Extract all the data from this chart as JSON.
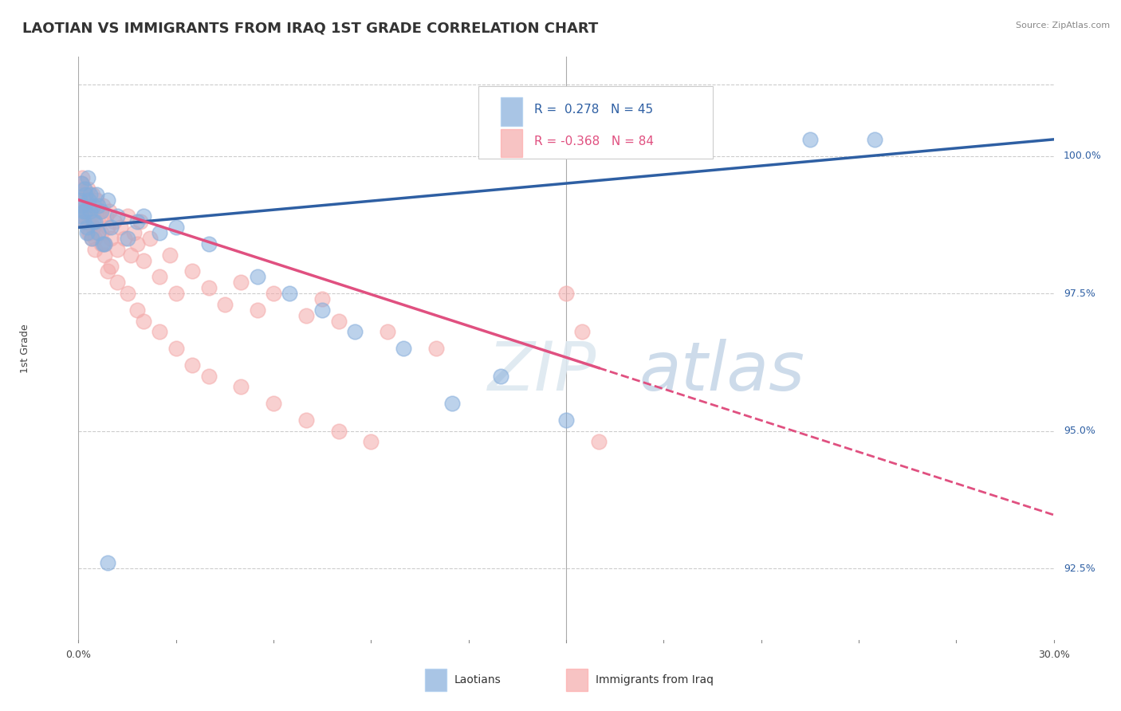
{
  "title": "LAOTIAN VS IMMIGRANTS FROM IRAQ 1ST GRADE CORRELATION CHART",
  "source_text": "Source: ZipAtlas.com",
  "ylabel": "1st Grade",
  "xlim": [
    0.0,
    30.0
  ],
  "ylim": [
    91.2,
    101.8
  ],
  "yticks": [
    92.5,
    95.0,
    97.5,
    100.0
  ],
  "ytick_labels": [
    "92.5%",
    "95.0%",
    "97.5%",
    "100.0%"
  ],
  "top_dotted_y": 101.3,
  "legend_blue_r": "0.278",
  "legend_blue_n": "45",
  "legend_pink_r": "-0.368",
  "legend_pink_n": "84",
  "legend_label_blue": "Laotians",
  "legend_label_pink": "Immigrants from Iraq",
  "blue_color": "#85ADDB",
  "pink_color": "#F4AAAA",
  "trendline_blue_color": "#2E5FA3",
  "trendline_pink_color": "#E05080",
  "background_color": "#FFFFFF",
  "grid_color": "#CCCCCC",
  "blue_points_x": [
    0.05,
    0.08,
    0.1,
    0.12,
    0.15,
    0.18,
    0.2,
    0.22,
    0.25,
    0.28,
    0.3,
    0.35,
    0.4,
    0.45,
    0.5,
    0.55,
    0.6,
    0.7,
    0.8,
    0.9,
    1.0,
    1.2,
    1.5,
    1.8,
    2.0,
    2.5,
    3.0,
    4.0,
    5.5,
    6.5,
    7.5,
    8.5,
    10.0,
    11.5,
    13.0,
    15.0,
    22.5,
    24.5,
    0.15,
    0.25,
    0.35,
    0.45,
    0.6,
    0.75,
    0.9
  ],
  "blue_points_y": [
    99.2,
    98.9,
    99.5,
    99.1,
    98.8,
    99.4,
    99.0,
    99.3,
    98.7,
    99.6,
    99.2,
    99.0,
    98.5,
    99.1,
    98.8,
    99.3,
    98.6,
    99.0,
    98.4,
    99.2,
    98.7,
    98.9,
    98.5,
    98.8,
    98.9,
    98.6,
    98.7,
    98.4,
    97.8,
    97.5,
    97.2,
    96.8,
    96.5,
    95.5,
    96.0,
    95.2,
    100.3,
    100.3,
    99.0,
    98.6,
    99.3,
    98.8,
    99.1,
    98.4,
    92.6
  ],
  "pink_points_x": [
    0.05,
    0.08,
    0.1,
    0.12,
    0.15,
    0.18,
    0.2,
    0.22,
    0.25,
    0.28,
    0.3,
    0.32,
    0.35,
    0.38,
    0.4,
    0.42,
    0.45,
    0.48,
    0.5,
    0.55,
    0.6,
    0.65,
    0.7,
    0.75,
    0.8,
    0.85,
    0.9,
    0.95,
    1.0,
    1.1,
    1.2,
    1.3,
    1.4,
    1.5,
    1.6,
    1.7,
    1.8,
    1.9,
    2.0,
    2.2,
    2.5,
    2.8,
    3.0,
    3.5,
    4.0,
    4.5,
    5.0,
    5.5,
    6.0,
    7.0,
    7.5,
    8.0,
    9.5,
    11.0,
    0.1,
    0.15,
    0.2,
    0.25,
    0.3,
    0.35,
    0.4,
    0.45,
    0.5,
    0.6,
    0.7,
    0.8,
    0.9,
    1.0,
    1.2,
    1.5,
    1.8,
    2.0,
    2.5,
    3.0,
    3.5,
    4.0,
    5.0,
    6.0,
    7.0,
    8.0,
    9.0,
    15.0,
    15.5,
    16.0
  ],
  "pink_points_y": [
    99.3,
    99.5,
    99.2,
    99.6,
    99.4,
    98.9,
    99.1,
    99.3,
    99.0,
    99.4,
    98.8,
    99.2,
    98.6,
    99.1,
    98.9,
    99.3,
    98.7,
    99.0,
    98.5,
    99.2,
    98.8,
    99.0,
    98.6,
    99.1,
    98.4,
    98.9,
    98.7,
    99.0,
    98.5,
    98.8,
    98.3,
    98.7,
    98.5,
    98.9,
    98.2,
    98.6,
    98.4,
    98.8,
    98.1,
    98.5,
    97.8,
    98.2,
    97.5,
    97.9,
    97.6,
    97.3,
    97.7,
    97.2,
    97.5,
    97.1,
    97.4,
    97.0,
    96.8,
    96.5,
    99.0,
    99.2,
    98.8,
    99.1,
    98.6,
    98.9,
    98.5,
    98.7,
    98.3,
    98.6,
    98.4,
    98.2,
    97.9,
    98.0,
    97.7,
    97.5,
    97.2,
    97.0,
    96.8,
    96.5,
    96.2,
    96.0,
    95.8,
    95.5,
    95.2,
    95.0,
    94.8,
    97.5,
    96.8,
    94.8
  ],
  "watermark_zip": "ZIP",
  "watermark_atlas": "atlas",
  "title_fontsize": 13,
  "axis_label_fontsize": 9,
  "tick_fontsize": 9,
  "pink_dash_start_x": 16.0
}
